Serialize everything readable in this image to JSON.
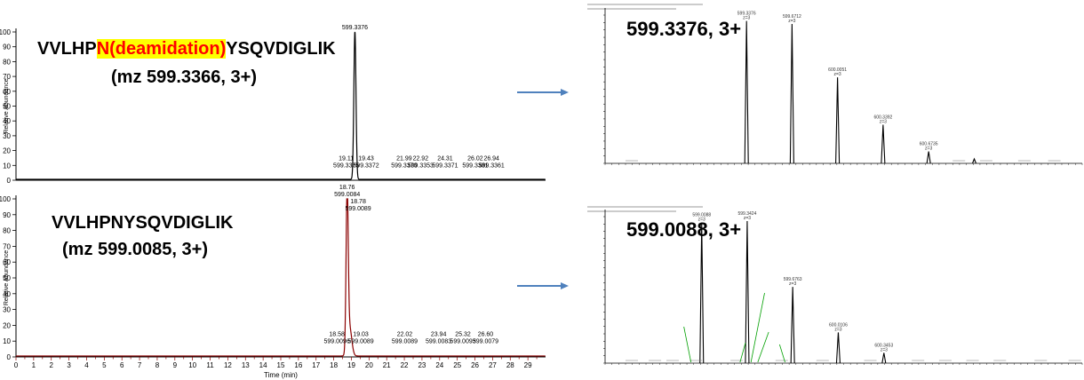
{
  "colors": {
    "top_trace": "#000000",
    "bottom_trace": "#8b0000",
    "arrow": "#4f81bd",
    "highlight_bg": "#ffff00",
    "highlight_text": "#ff0000",
    "label_line": "#00a000",
    "tick_green": "#00a000"
  },
  "annotations": {
    "top_peptide_prefix": "VVLHP",
    "top_peptide_mod": "N(deamidation)",
    "top_peptide_suffix": "YSQVDIGLIK",
    "top_mz": "(mz 599.3366, 3+)",
    "bottom_peptide": "VVLHPNYSQVDIGLIK",
    "bottom_mz": "(mz 599.0085, 3+)",
    "top_spectrum_label": "599.3376, 3+",
    "bottom_spectrum_label": "599.0088, 3+"
  },
  "chart_data": [
    {
      "id": "xic_top",
      "type": "line",
      "xlabel": "",
      "ylabel": "Relative Abundance",
      "xlim": [
        0,
        30
      ],
      "ylim": [
        0,
        100
      ],
      "yticks": [
        0,
        10,
        20,
        30,
        40,
        50,
        60,
        70,
        80,
        90,
        100
      ],
      "xticks": [],
      "peaks": [
        {
          "rt": 19.2,
          "height": 100,
          "width": 0.06
        }
      ],
      "labels": [
        {
          "x": 19.2,
          "y": 100,
          "lines": [
            "599.3376"
          ]
        },
        {
          "x": 19.11,
          "y": 7,
          "lines": [
            "19.11",
            "599.3375"
          ]
        },
        {
          "x": 19.43,
          "y": 7,
          "lines": [
            "19.43",
            "599.3372"
          ]
        },
        {
          "x": 21.99,
          "y": 7,
          "lines": [
            "21.99",
            "599.3370"
          ]
        },
        {
          "x": 22.92,
          "y": 7,
          "lines": [
            "22.92",
            "599.3353"
          ]
        },
        {
          "x": 24.31,
          "y": 7,
          "lines": [
            "24.31",
            "599.3371"
          ]
        },
        {
          "x": 26.02,
          "y": 7,
          "lines": [
            "26.02",
            "599.3381"
          ]
        },
        {
          "x": 26.94,
          "y": 7,
          "lines": [
            "26.94",
            "599.3361"
          ]
        }
      ]
    },
    {
      "id": "xic_bottom",
      "type": "line",
      "xlabel": "Time (min)",
      "ylabel": "Relative Abundance",
      "xlim": [
        0,
        30
      ],
      "ylim": [
        0,
        100
      ],
      "yticks": [
        0,
        10,
        20,
        30,
        40,
        50,
        60,
        70,
        80,
        90,
        100
      ],
      "xticks": [
        0,
        1,
        2,
        3,
        4,
        5,
        6,
        7,
        8,
        9,
        10,
        11,
        12,
        13,
        14,
        15,
        16,
        17,
        18,
        19,
        20,
        21,
        22,
        23,
        24,
        25,
        26,
        27,
        28,
        29
      ],
      "peaks": [
        {
          "rt": 18.76,
          "height": 100,
          "width": 0.06
        },
        {
          "rt": 18.9,
          "height": 18,
          "width": 0.12
        }
      ],
      "labels": [
        {
          "x": 18.76,
          "y": 100,
          "lines": [
            "18.76",
            "599.0084"
          ]
        },
        {
          "x": 18.78,
          "y": 91,
          "lines": [
            "18.78",
            "599.0089"
          ]
        },
        {
          "x": 18.58,
          "y": 7,
          "lines": [
            "18.58",
            "599.0096"
          ]
        },
        {
          "x": 19.03,
          "y": 7,
          "lines": [
            "19.03",
            "599.0089"
          ]
        },
        {
          "x": 22.02,
          "y": 7,
          "lines": [
            "22.02",
            "599.0089"
          ]
        },
        {
          "x": 23.94,
          "y": 7,
          "lines": [
            "23.94",
            "599.0083"
          ]
        },
        {
          "x": 25.32,
          "y": 7,
          "lines": [
            "25.32",
            "599.0093"
          ]
        },
        {
          "x": 26.6,
          "y": 7,
          "lines": [
            "26.60",
            "599.0079"
          ]
        }
      ]
    },
    {
      "id": "ms_top",
      "type": "line",
      "xlim": [
        598.3,
        601.8
      ],
      "ylim": [
        0,
        100
      ],
      "peaks": [
        {
          "mz": 599.3376,
          "height": 96
        },
        {
          "mz": 599.6712,
          "height": 94
        },
        {
          "mz": 600.0051,
          "height": 58
        },
        {
          "mz": 600.3392,
          "height": 26
        },
        {
          "mz": 600.6735,
          "height": 8
        },
        {
          "mz": 601.0081,
          "height": 3
        }
      ],
      "labels": [
        {
          "mz": 599.3376,
          "lines": [
            "599.3376",
            "z=3"
          ]
        },
        {
          "mz": 599.6712,
          "lines": [
            "599.6712",
            "z=3"
          ]
        },
        {
          "mz": 600.0051,
          "lines": [
            "600.0051",
            "z=3"
          ]
        },
        {
          "mz": 600.3392,
          "lines": [
            "600.3392",
            "z=3"
          ]
        },
        {
          "mz": 600.6735,
          "lines": [
            "600.6735",
            "z=3"
          ]
        }
      ]
    },
    {
      "id": "ms_bottom",
      "type": "line",
      "xlim": [
        598.3,
        601.8
      ],
      "ylim": [
        0,
        100
      ],
      "peaks": [
        {
          "mz": 599.0088,
          "height": 96
        },
        {
          "mz": 599.3424,
          "height": 97
        },
        {
          "mz": 599.6763,
          "height": 52
        },
        {
          "mz": 600.0106,
          "height": 21
        },
        {
          "mz": 600.3453,
          "height": 7
        }
      ],
      "labels": [
        {
          "mz": 599.0088,
          "lines": [
            "599.0088",
            "z=3"
          ]
        },
        {
          "mz": 599.3424,
          "lines": [
            "599.3424",
            "z=3"
          ]
        },
        {
          "mz": 599.6763,
          "lines": [
            "599.6763",
            "z=3"
          ]
        },
        {
          "mz": 600.0106,
          "lines": [
            "600.0106",
            "z=3"
          ]
        },
        {
          "mz": 600.3453,
          "lines": [
            "600.3453",
            "z=3"
          ]
        }
      ]
    }
  ]
}
